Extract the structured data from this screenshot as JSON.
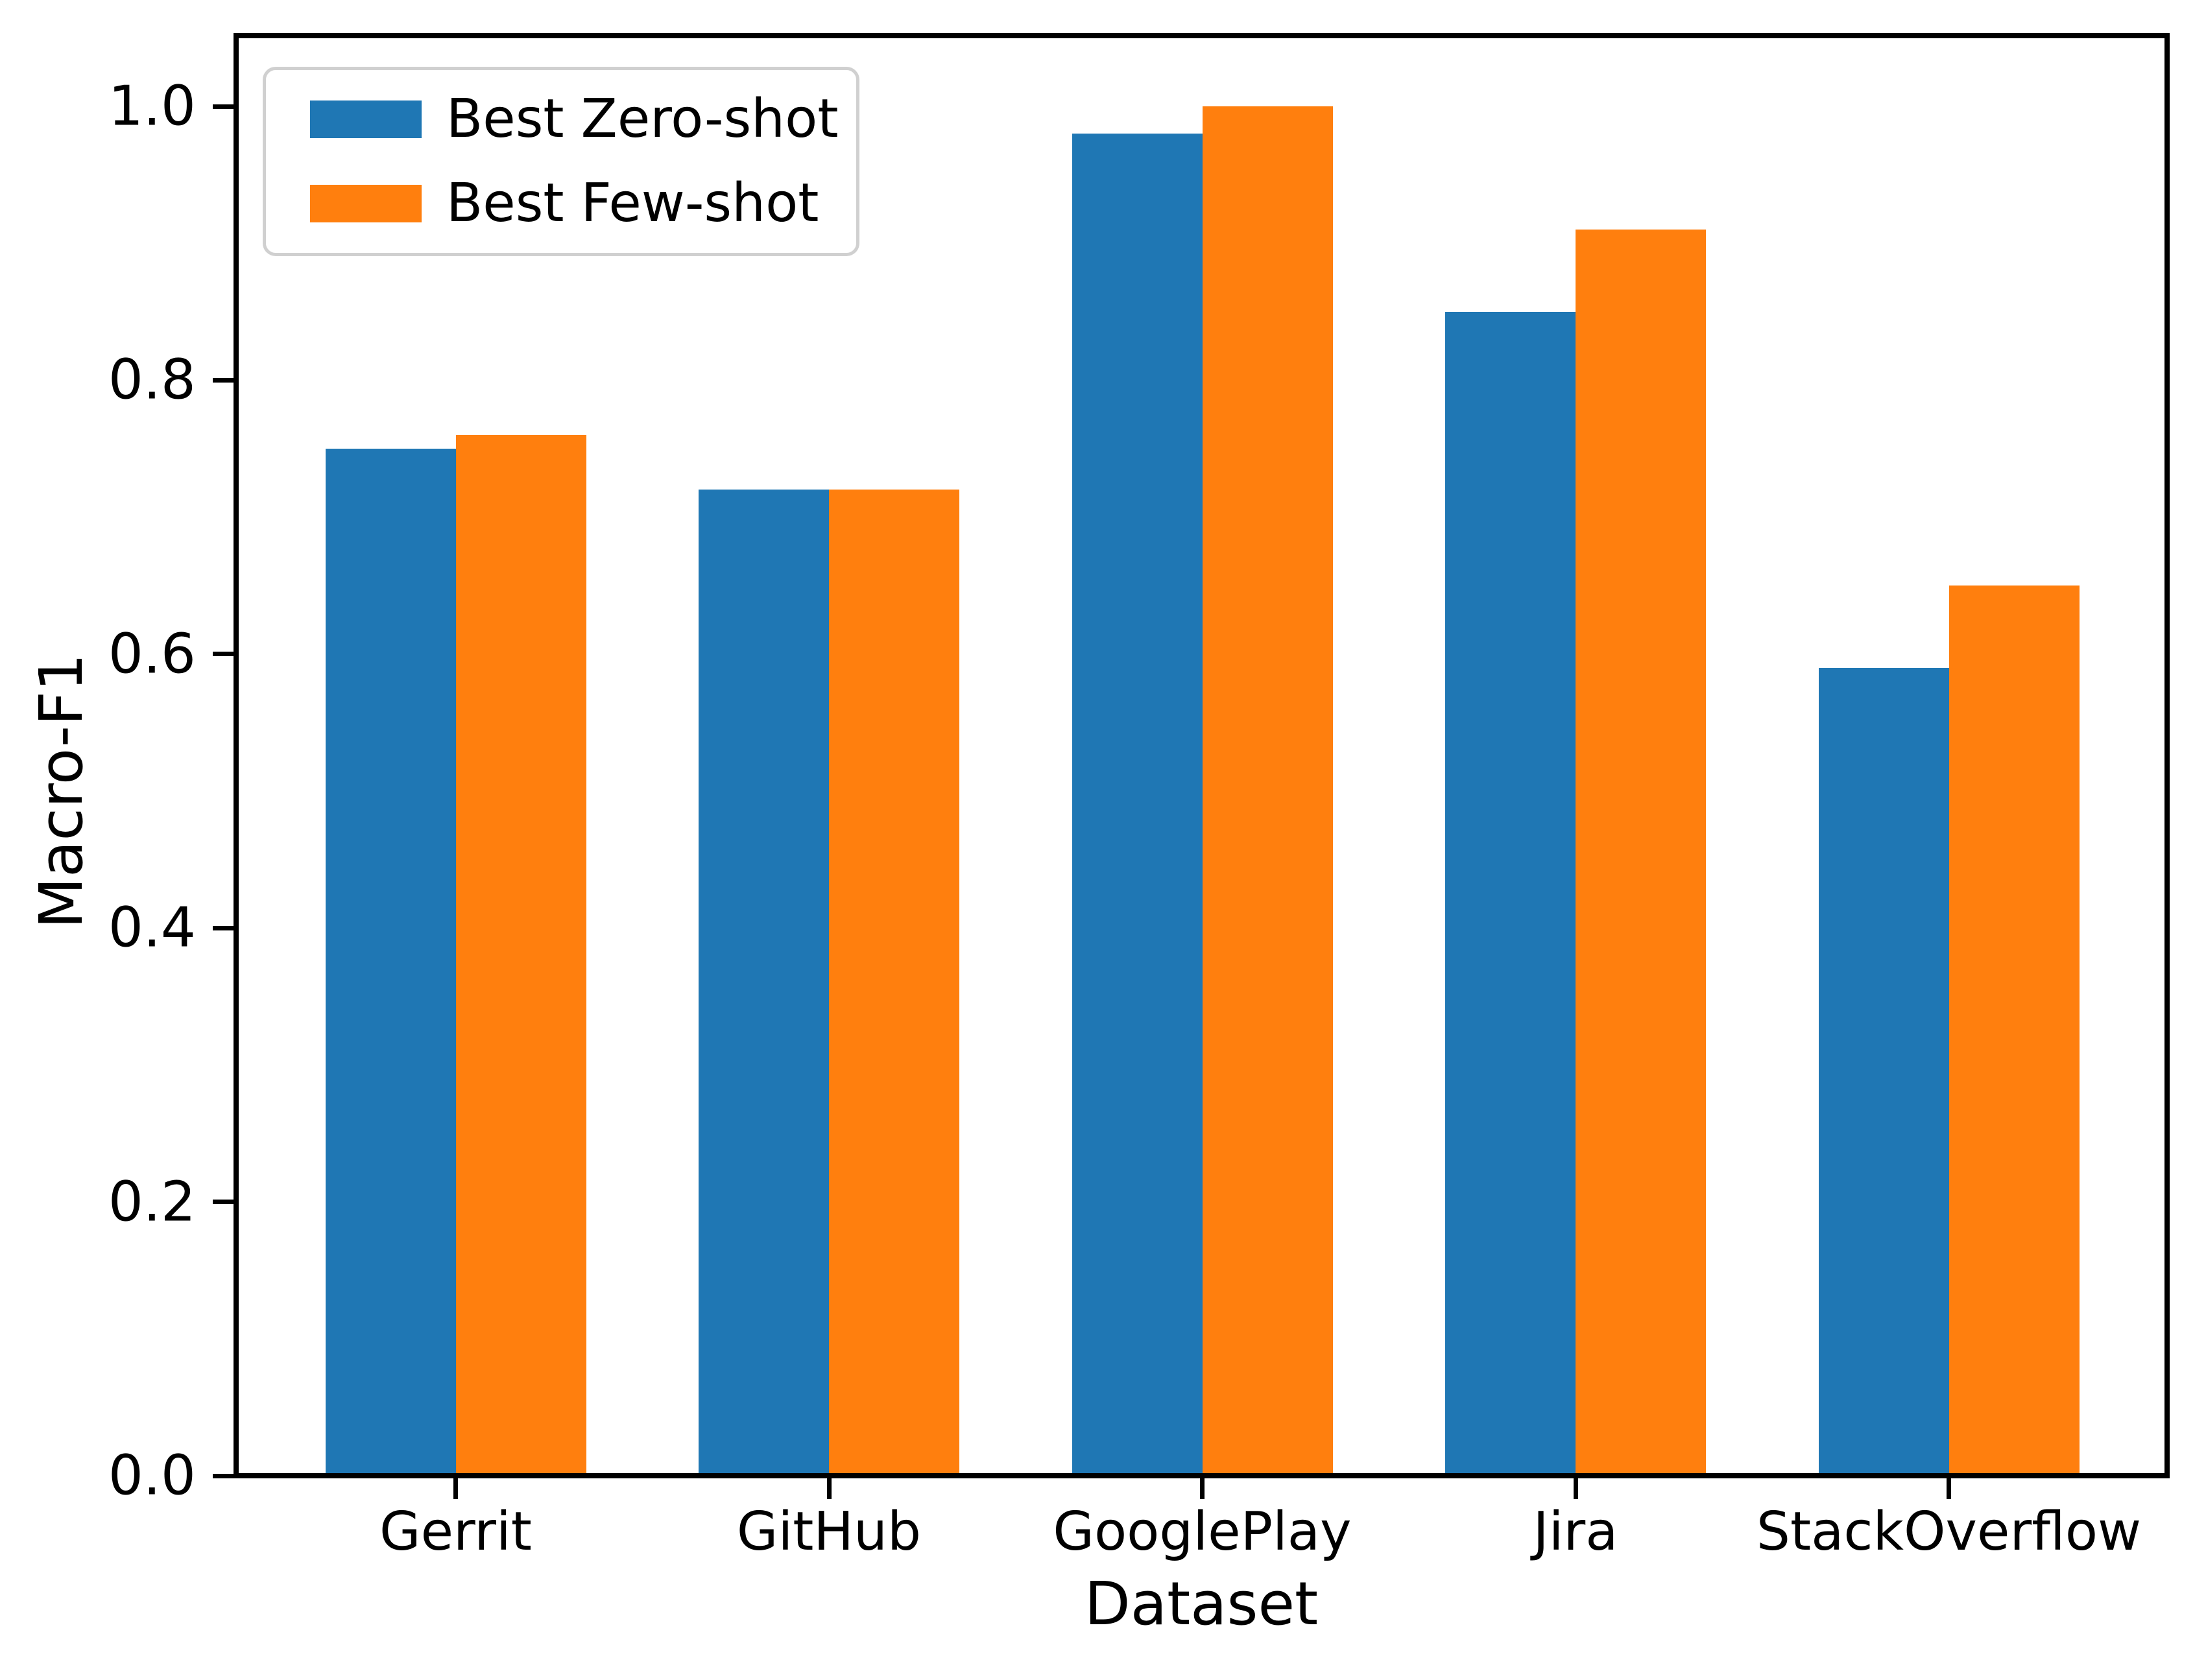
{
  "chart_data": {
    "type": "bar",
    "title": "",
    "xlabel": "Dataset",
    "ylabel": "Macro-F1",
    "categories": [
      "Gerrit",
      "GitHub",
      "GooglePlay",
      "Jira",
      "StackOverflow"
    ],
    "series": [
      {
        "name": "Best Zero-shot",
        "color": "#1f77b4",
        "values": [
          0.75,
          0.72,
          0.98,
          0.85,
          0.59
        ]
      },
      {
        "name": "Best Few-shot",
        "color": "#ff7f0e",
        "values": [
          0.76,
          0.72,
          1.0,
          0.91,
          0.65
        ]
      }
    ],
    "ylim": [
      0.0,
      1.05
    ],
    "ytick_labels": [
      "0.0",
      "0.2",
      "0.4",
      "0.6",
      "0.8",
      "1.0"
    ],
    "ytick_values": [
      0.0,
      0.2,
      0.4,
      0.6,
      0.8,
      1.0
    ],
    "bar_width_fraction": 0.35,
    "grid": false,
    "legend_position": "upper left",
    "axis_color": "#000000",
    "background_color": "#ffffff"
  }
}
